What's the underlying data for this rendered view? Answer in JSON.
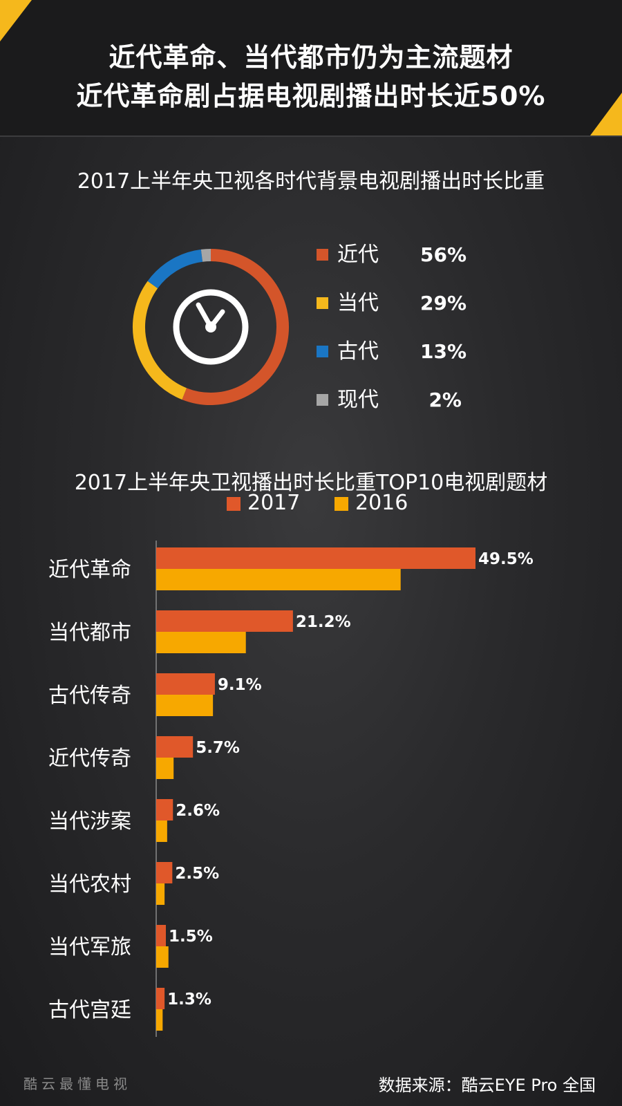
{
  "header": {
    "line1": "近代革命、当代都市仍为主流题材",
    "line2": "近代革命剧占据电视剧播出时长近50%"
  },
  "colors": {
    "modern": "#d4552a",
    "contemporary": "#f5b81c",
    "ancient": "#1a76c4",
    "present": "#a6a6a6",
    "bar2017": "#e0582a",
    "bar2016": "#f7a800",
    "accent": "#f5b81c"
  },
  "icons": {
    "center": "clock-icon"
  },
  "chart_data": [
    {
      "type": "pie",
      "title": "2017上半年央卫视各时代背景电视剧播出时长比重",
      "labels": [
        "近代",
        "当代",
        "古代",
        "现代"
      ],
      "values": [
        56,
        29,
        13,
        2
      ],
      "value_labels": [
        "56%",
        "29%",
        "13%",
        "2%"
      ],
      "legend": "right"
    },
    {
      "type": "bar",
      "orientation": "horizontal",
      "title": "2017上半年央卫视播出时长比重TOP10电视剧题材",
      "categories": [
        "近代革命",
        "当代都市",
        "古代传奇",
        "近代传奇",
        "当代涉案",
        "当代农村",
        "当代军旅",
        "古代宫廷"
      ],
      "series": [
        {
          "name": "2017",
          "values": [
            49.5,
            21.2,
            9.1,
            5.7,
            2.6,
            2.5,
            1.5,
            1.3
          ],
          "labels": [
            "49.5%",
            "21.2%",
            "9.1%",
            "5.7%",
            "2.6%",
            "2.5%",
            "1.5%",
            "1.3%"
          ]
        },
        {
          "name": "2016",
          "values": [
            37.9,
            13.9,
            8.8,
            2.7,
            1.7,
            1.3,
            1.9,
            1.0
          ]
        }
      ],
      "xlim": [
        0,
        52
      ],
      "legend": "top"
    }
  ],
  "footer": {
    "source": "数据来源：酷云EYE Pro 全国",
    "watermark": "酷云最懂电视"
  }
}
